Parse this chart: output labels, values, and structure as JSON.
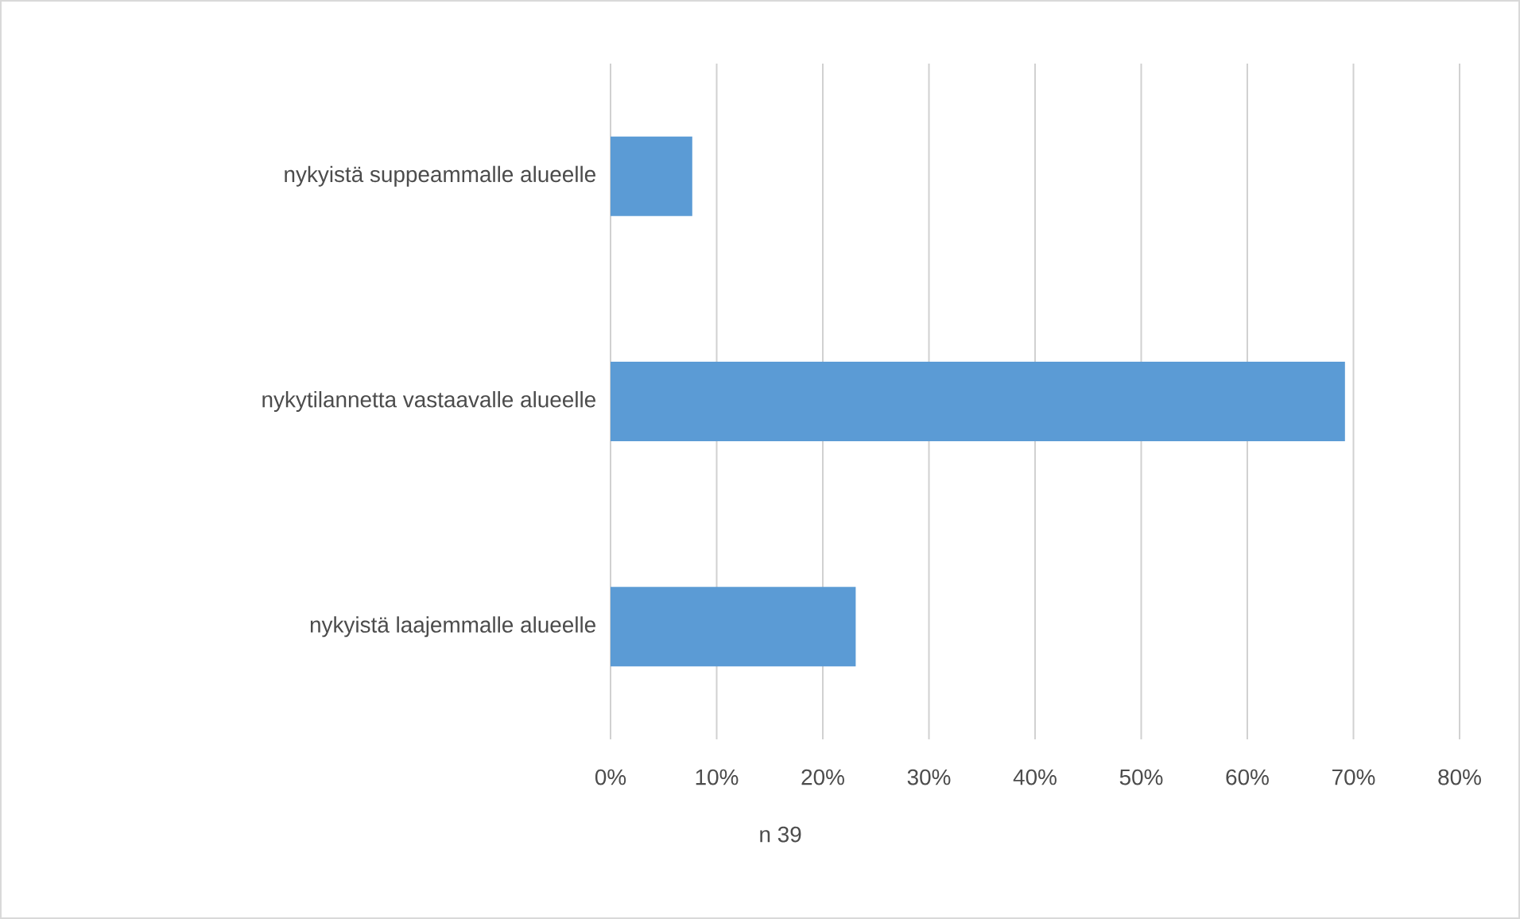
{
  "chart_data": {
    "type": "bar",
    "orientation": "horizontal",
    "xlabel": "n 39",
    "categories": [
      "nykyistä suppeammalle alueelle",
      "nykytilannetta vastaavalle alueelle",
      "nykyistä laajemmalle alueelle"
    ],
    "values": [
      7.7,
      69.2,
      23.1
    ],
    "color": "#5b9bd5",
    "xlim": [
      0,
      80
    ],
    "xticks": [
      {
        "value": 0,
        "label": "0%"
      },
      {
        "value": 10,
        "label": "10%"
      },
      {
        "value": 20,
        "label": "20%"
      },
      {
        "value": 30,
        "label": "30%"
      },
      {
        "value": 40,
        "label": "40%"
      },
      {
        "value": 50,
        "label": "50%"
      },
      {
        "value": 60,
        "label": "60%"
      },
      {
        "value": 70,
        "label": "70%"
      },
      {
        "value": 80,
        "label": "80%"
      }
    ],
    "grid": "x"
  }
}
